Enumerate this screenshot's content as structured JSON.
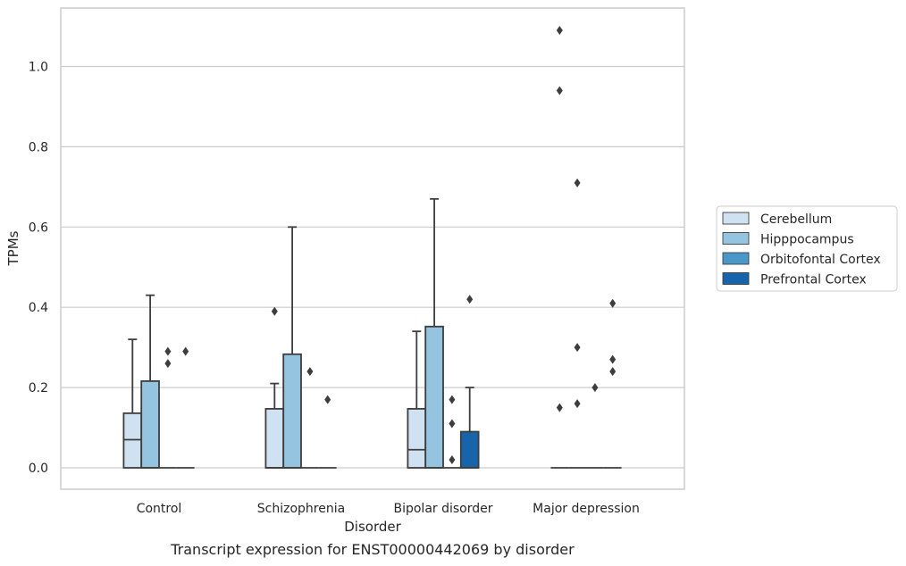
{
  "caption": "Transcript expression for ENST00000442069 by disorder",
  "chart_data": {
    "type": "box",
    "xlabel": "Disorder",
    "ylabel": "TPMs",
    "ylim": [
      -0.05,
      1.15
    ],
    "yticks": [
      0.0,
      0.2,
      0.4,
      0.6,
      0.8,
      1.0
    ],
    "ytick_labels": [
      "0.0",
      "0.2",
      "0.4",
      "0.6",
      "0.8",
      "1.0"
    ],
    "grid": "horizontal",
    "legend_position": "right",
    "categories": [
      "Control",
      "Schizophrenia",
      "Bipolar disorder",
      "Major depression"
    ],
    "series": [
      {
        "name": "Cerebellum",
        "color": "#d0e1f2",
        "boxes": [
          {
            "category": "Control",
            "min": 0.0,
            "q1": 0.0,
            "median": 0.07,
            "q3": 0.136,
            "max": 0.32,
            "outliers": []
          },
          {
            "category": "Schizophrenia",
            "min": 0.0,
            "q1": 0.0,
            "median": 0.0,
            "q3": 0.147,
            "max": 0.21,
            "outliers": [
              0.39
            ]
          },
          {
            "category": "Bipolar disorder",
            "min": 0.0,
            "q1": 0.0,
            "median": 0.045,
            "q3": 0.147,
            "max": 0.34,
            "outliers": []
          },
          {
            "category": "Major depression",
            "min": 0.0,
            "q1": 0.0,
            "median": 0.0,
            "q3": 0.0,
            "max": 0.0,
            "outliers": [
              0.15,
              0.94,
              1.09
            ]
          }
        ]
      },
      {
        "name": "Hipppocampus",
        "color": "#94c4df",
        "boxes": [
          {
            "category": "Control",
            "min": 0.0,
            "q1": 0.0,
            "median": 0.0,
            "q3": 0.216,
            "max": 0.43,
            "outliers": []
          },
          {
            "category": "Schizophrenia",
            "min": 0.0,
            "q1": 0.0,
            "median": 0.0,
            "q3": 0.283,
            "max": 0.6,
            "outliers": []
          },
          {
            "category": "Bipolar disorder",
            "min": 0.0,
            "q1": 0.0,
            "median": 0.0,
            "q3": 0.352,
            "max": 0.67,
            "outliers": []
          },
          {
            "category": "Major depression",
            "min": 0.0,
            "q1": 0.0,
            "median": 0.0,
            "q3": 0.0,
            "max": 0.0,
            "outliers": [
              0.16,
              0.3,
              0.71
            ]
          }
        ]
      },
      {
        "name": "Orbitofontal Cortex",
        "color": "#4a98c9",
        "boxes": [
          {
            "category": "Control",
            "min": 0.0,
            "q1": 0.0,
            "median": 0.0,
            "q3": 0.0,
            "max": 0.0,
            "outliers": [
              0.26,
              0.29
            ]
          },
          {
            "category": "Schizophrenia",
            "min": 0.0,
            "q1": 0.0,
            "median": 0.0,
            "q3": 0.0,
            "max": 0.0,
            "outliers": [
              0.24
            ]
          },
          {
            "category": "Bipolar disorder",
            "min": 0.0,
            "q1": 0.0,
            "median": 0.0,
            "q3": 0.0,
            "max": 0.0,
            "outliers": [
              0.02,
              0.11,
              0.17
            ]
          },
          {
            "category": "Major depression",
            "min": 0.0,
            "q1": 0.0,
            "median": 0.0,
            "q3": 0.0,
            "max": 0.0,
            "outliers": [
              0.2
            ]
          }
        ]
      },
      {
        "name": "Prefrontal Cortex",
        "color": "#1764ab",
        "boxes": [
          {
            "category": "Control",
            "min": 0.0,
            "q1": 0.0,
            "median": 0.0,
            "q3": 0.0,
            "max": 0.0,
            "outliers": [
              0.29
            ]
          },
          {
            "category": "Schizophrenia",
            "min": 0.0,
            "q1": 0.0,
            "median": 0.0,
            "q3": 0.0,
            "max": 0.0,
            "outliers": [
              0.17
            ]
          },
          {
            "category": "Bipolar disorder",
            "min": 0.0,
            "q1": 0.0,
            "median": 0.0,
            "q3": 0.09,
            "max": 0.2,
            "outliers": [
              0.42
            ]
          },
          {
            "category": "Major depression",
            "min": 0.0,
            "q1": 0.0,
            "median": 0.0,
            "q3": 0.0,
            "max": 0.0,
            "outliers": [
              0.24,
              0.27,
              0.41
            ]
          }
        ]
      }
    ]
  }
}
